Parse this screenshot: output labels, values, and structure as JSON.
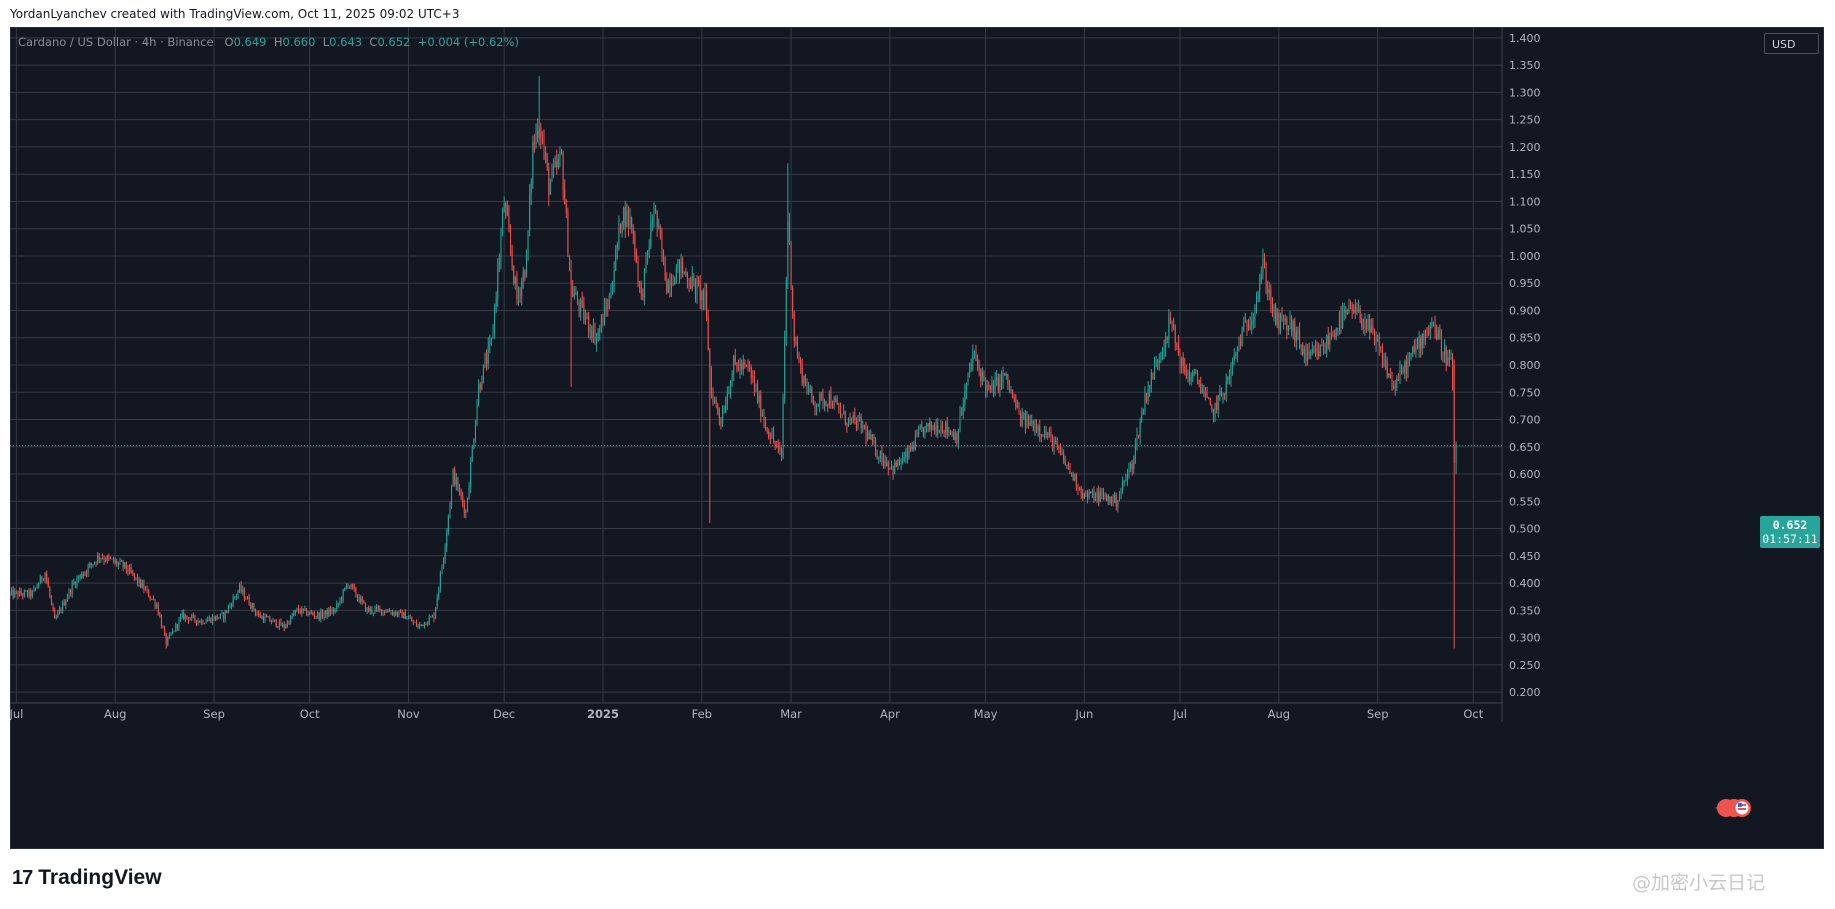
{
  "header": {
    "attribution": "YordanLyanchev created with TradingView.com, Oct 11, 2025 09:02 UTC+3"
  },
  "legend": {
    "symbol": "Cardano / US Dollar · 4h · Binance",
    "open_label": "O",
    "open_value": "0.649",
    "high_label": "H",
    "high_value": "0.660",
    "low_label": "L",
    "low_value": "0.643",
    "close_label": "C",
    "close_value": "0.652",
    "change": "+0.004 (+0.62%)"
  },
  "currency": "USD",
  "last_price": {
    "price": "0.652",
    "countdown": "01:57:11"
  },
  "footer": {
    "logo_text": "TradingView",
    "watermark": "@加密小云日记"
  },
  "colors": {
    "background": "#131722",
    "grid": "#363a45",
    "up": "#26a69a",
    "down": "#ef5350",
    "axis_text": "#b2b5be"
  },
  "chart_data": {
    "type": "candlestick",
    "timeframe": "4h",
    "symbol": "ADA/USD",
    "ylim": [
      0.18,
      1.42
    ],
    "y_ticks": [
      0.2,
      0.25,
      0.3,
      0.35,
      0.4,
      0.45,
      0.5,
      0.55,
      0.6,
      0.65,
      0.7,
      0.75,
      0.8,
      0.85,
      0.9,
      0.95,
      1.0,
      1.05,
      1.1,
      1.15,
      1.2,
      1.25,
      1.3,
      1.35,
      1.4
    ],
    "x_labels": [
      "Jul",
      "Aug",
      "Sep",
      "Oct",
      "Nov",
      "Dec",
      "2025",
      "Feb",
      "Mar",
      "Apr",
      "May",
      "Jun",
      "Jul",
      "Aug",
      "Sep",
      "Oct"
    ],
    "x_range_days": [
      -2,
      466
    ],
    "last_close": 0.652,
    "anchors": [
      [
        -2,
        0.38
      ],
      [
        5,
        0.38
      ],
      [
        9,
        0.42
      ],
      [
        12,
        0.33
      ],
      [
        18,
        0.4
      ],
      [
        26,
        0.45
      ],
      [
        34,
        0.43
      ],
      [
        40,
        0.39
      ],
      [
        44,
        0.36
      ],
      [
        47,
        0.29
      ],
      [
        52,
        0.34
      ],
      [
        58,
        0.33
      ],
      [
        65,
        0.34
      ],
      [
        70,
        0.39
      ],
      [
        76,
        0.34
      ],
      [
        84,
        0.32
      ],
      [
        88,
        0.35
      ],
      [
        95,
        0.34
      ],
      [
        100,
        0.35
      ],
      [
        104,
        0.4
      ],
      [
        110,
        0.35
      ],
      [
        116,
        0.35
      ],
      [
        122,
        0.34
      ],
      [
        126,
        0.32
      ],
      [
        131,
        0.34
      ],
      [
        134,
        0.45
      ],
      [
        137,
        0.6
      ],
      [
        141,
        0.53
      ],
      [
        145,
        0.76
      ],
      [
        149,
        0.84
      ],
      [
        153,
        1.1
      ],
      [
        157,
        0.92
      ],
      [
        160,
        0.99
      ],
      [
        162,
        1.2
      ],
      [
        164,
        1.25
      ],
      [
        167,
        1.13
      ],
      [
        171,
        1.18
      ],
      [
        174,
        0.94
      ],
      [
        178,
        0.89
      ],
      [
        182,
        0.85
      ],
      [
        186,
        0.92
      ],
      [
        190,
        1.08
      ],
      [
        193,
        1.06
      ],
      [
        196,
        0.92
      ],
      [
        200,
        1.09
      ],
      [
        204,
        0.95
      ],
      [
        208,
        0.98
      ],
      [
        212,
        0.95
      ],
      [
        216,
        0.92
      ],
      [
        218,
        0.75
      ],
      [
        221,
        0.7
      ],
      [
        225,
        0.8
      ],
      [
        230,
        0.79
      ],
      [
        235,
        0.69
      ],
      [
        240,
        0.63
      ],
      [
        242,
        1.07
      ],
      [
        244,
        0.85
      ],
      [
        246,
        0.79
      ],
      [
        250,
        0.73
      ],
      [
        255,
        0.74
      ],
      [
        260,
        0.7
      ],
      [
        265,
        0.69
      ],
      [
        270,
        0.64
      ],
      [
        275,
        0.61
      ],
      [
        279,
        0.63
      ],
      [
        284,
        0.68
      ],
      [
        290,
        0.69
      ],
      [
        295,
        0.67
      ],
      [
        300,
        0.82
      ],
      [
        305,
        0.75
      ],
      [
        310,
        0.78
      ],
      [
        315,
        0.7
      ],
      [
        320,
        0.69
      ],
      [
        325,
        0.66
      ],
      [
        330,
        0.61
      ],
      [
        335,
        0.56
      ],
      [
        340,
        0.56
      ],
      [
        345,
        0.55
      ],
      [
        350,
        0.62
      ],
      [
        354,
        0.74
      ],
      [
        358,
        0.81
      ],
      [
        362,
        0.88
      ],
      [
        366,
        0.79
      ],
      [
        371,
        0.77
      ],
      [
        375,
        0.71
      ],
      [
        380,
        0.77
      ],
      [
        384,
        0.85
      ],
      [
        388,
        0.9
      ],
      [
        391,
        0.98
      ],
      [
        395,
        0.88
      ],
      [
        400,
        0.87
      ],
      [
        405,
        0.81
      ],
      [
        410,
        0.83
      ],
      [
        415,
        0.88
      ],
      [
        419,
        0.9
      ],
      [
        423,
        0.88
      ],
      [
        428,
        0.82
      ],
      [
        432,
        0.76
      ],
      [
        436,
        0.8
      ],
      [
        440,
        0.84
      ],
      [
        444,
        0.88
      ],
      [
        448,
        0.82
      ],
      [
        450,
        0.8
      ],
      [
        452,
        0.65
      ]
    ],
    "crash": {
      "day": 451,
      "low": 0.28
    }
  }
}
